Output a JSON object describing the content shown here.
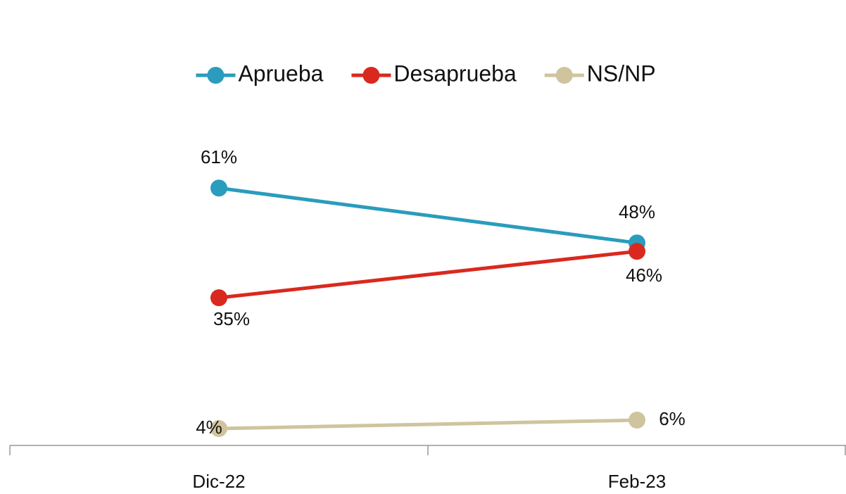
{
  "chart_data": {
    "type": "line",
    "categories": [
      "Dic-22",
      "Feb-23"
    ],
    "series": [
      {
        "name": "Aprueba",
        "color": "#2a9cbd",
        "values": [
          61,
          48
        ],
        "value_labels": [
          "61%",
          "48%"
        ]
      },
      {
        "name": "Desaprueba",
        "color": "#d9291f",
        "values": [
          35,
          46
        ],
        "value_labels": [
          "35%",
          "46%"
        ]
      },
      {
        "name": "NS/NP",
        "color": "#cfc49e",
        "values": [
          4,
          6
        ],
        "value_labels": [
          "4%",
          "6%"
        ]
      }
    ],
    "ylim": [
      0,
      100
    ],
    "legend": "top"
  }
}
